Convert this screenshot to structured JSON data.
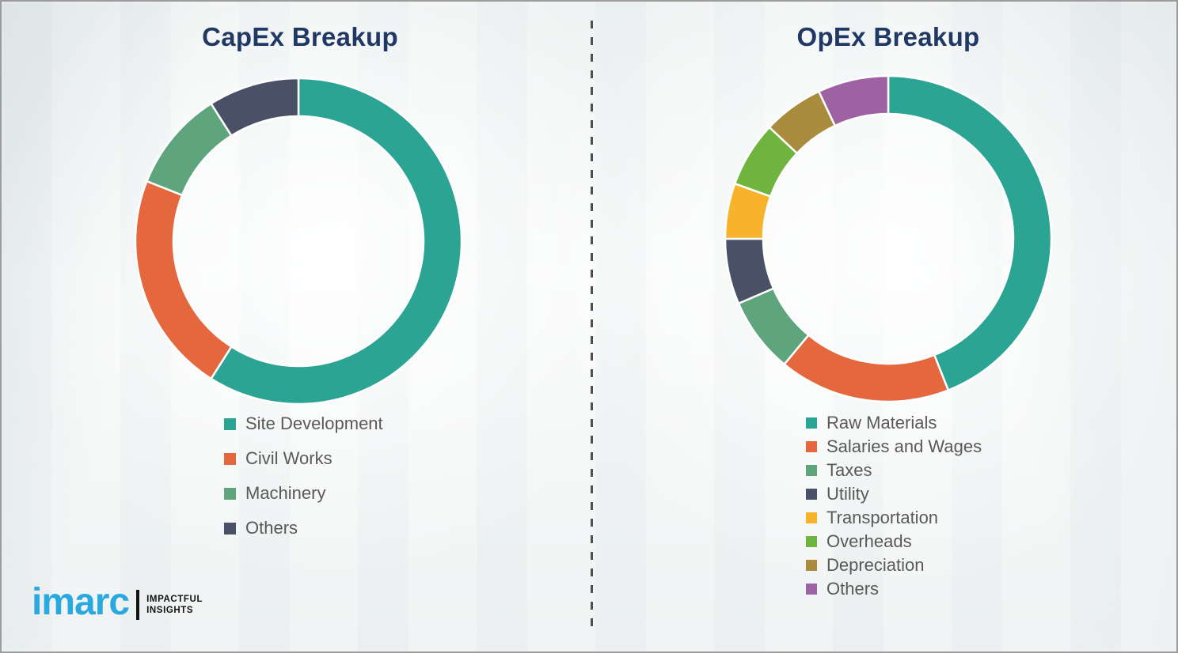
{
  "slide": {
    "background_color": "#f4f6f6",
    "border_color": "#9b9b9b",
    "divider_color": "#4f4f4f",
    "legend_text_color": "#595959",
    "title_color": "#203864"
  },
  "logo": {
    "wordmark": "imarc",
    "wordmark_color": "#2aa9e0",
    "tagline_line1": "IMPACTFUL",
    "tagline_line2": "INSIGHTS",
    "tagline_color": "#111111"
  },
  "chart_data": [
    {
      "type": "pie",
      "variant": "donut",
      "title": "CapEx Breakup",
      "start_angle_deg": 0,
      "direction": "clockwise",
      "legend_position": "below-left",
      "categories": [
        "Site Development",
        "Civil Works",
        "Machinery",
        "Others"
      ],
      "values": [
        59,
        22,
        10,
        9
      ],
      "unit": "percent",
      "colors": [
        "#2ba493",
        "#e5673e",
        "#5ea57d",
        "#4a5066"
      ]
    },
    {
      "type": "pie",
      "variant": "donut",
      "title": "OpEx Breakup",
      "start_angle_deg": 0,
      "direction": "clockwise",
      "legend_position": "below-left",
      "categories": [
        "Raw Materials",
        "Salaries and Wages",
        "Taxes",
        "Utility",
        "Transportation",
        "Overheads",
        "Depreciation",
        "Others"
      ],
      "values": [
        44,
        17,
        7.5,
        6.5,
        5.5,
        6.5,
        6,
        7
      ],
      "unit": "percent",
      "colors": [
        "#2ba493",
        "#e5673e",
        "#5ea57d",
        "#4a5066",
        "#f6b32b",
        "#6fb43e",
        "#a98c3e",
        "#9d62a2"
      ]
    }
  ]
}
